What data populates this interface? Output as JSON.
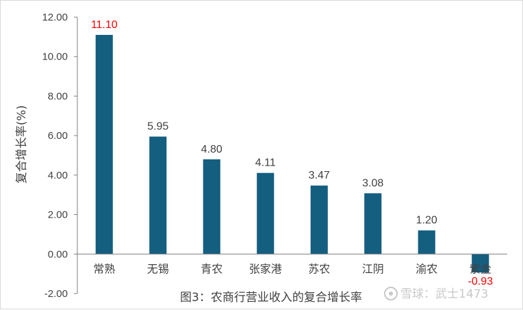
{
  "chart_data": {
    "type": "bar",
    "title": "",
    "caption": "图3：农商行营业收入的复合增长率",
    "ylabel": "复合增长率(%)",
    "xlabel": "",
    "categories": [
      "常熟",
      "无锡",
      "青农",
      "张家港",
      "苏农",
      "江阴",
      "渝农",
      "紫金"
    ],
    "values": [
      11.1,
      5.95,
      4.8,
      4.11,
      3.47,
      3.08,
      1.2,
      -0.93
    ],
    "value_labels": [
      "11.10",
      "5.95",
      "4.80",
      "4.11",
      "3.47",
      "3.08",
      "1.20",
      "-0.93"
    ],
    "ylim": [
      -2,
      12
    ],
    "yticks": [
      "-2.00",
      "0.00",
      "2.00",
      "4.00",
      "6.00",
      "8.00",
      "10.00",
      "12.00"
    ],
    "grid": false,
    "legend": "none",
    "colors": {
      "bar": "#145E80",
      "label_default": "#404040",
      "label_highlight": "#FF0000",
      "axis": "#7f7f7f"
    },
    "highlight_labels": [
      "11.10",
      "-0.93"
    ]
  },
  "watermark": {
    "icon": "snowball-icon",
    "text": "雪球：武士1473"
  }
}
